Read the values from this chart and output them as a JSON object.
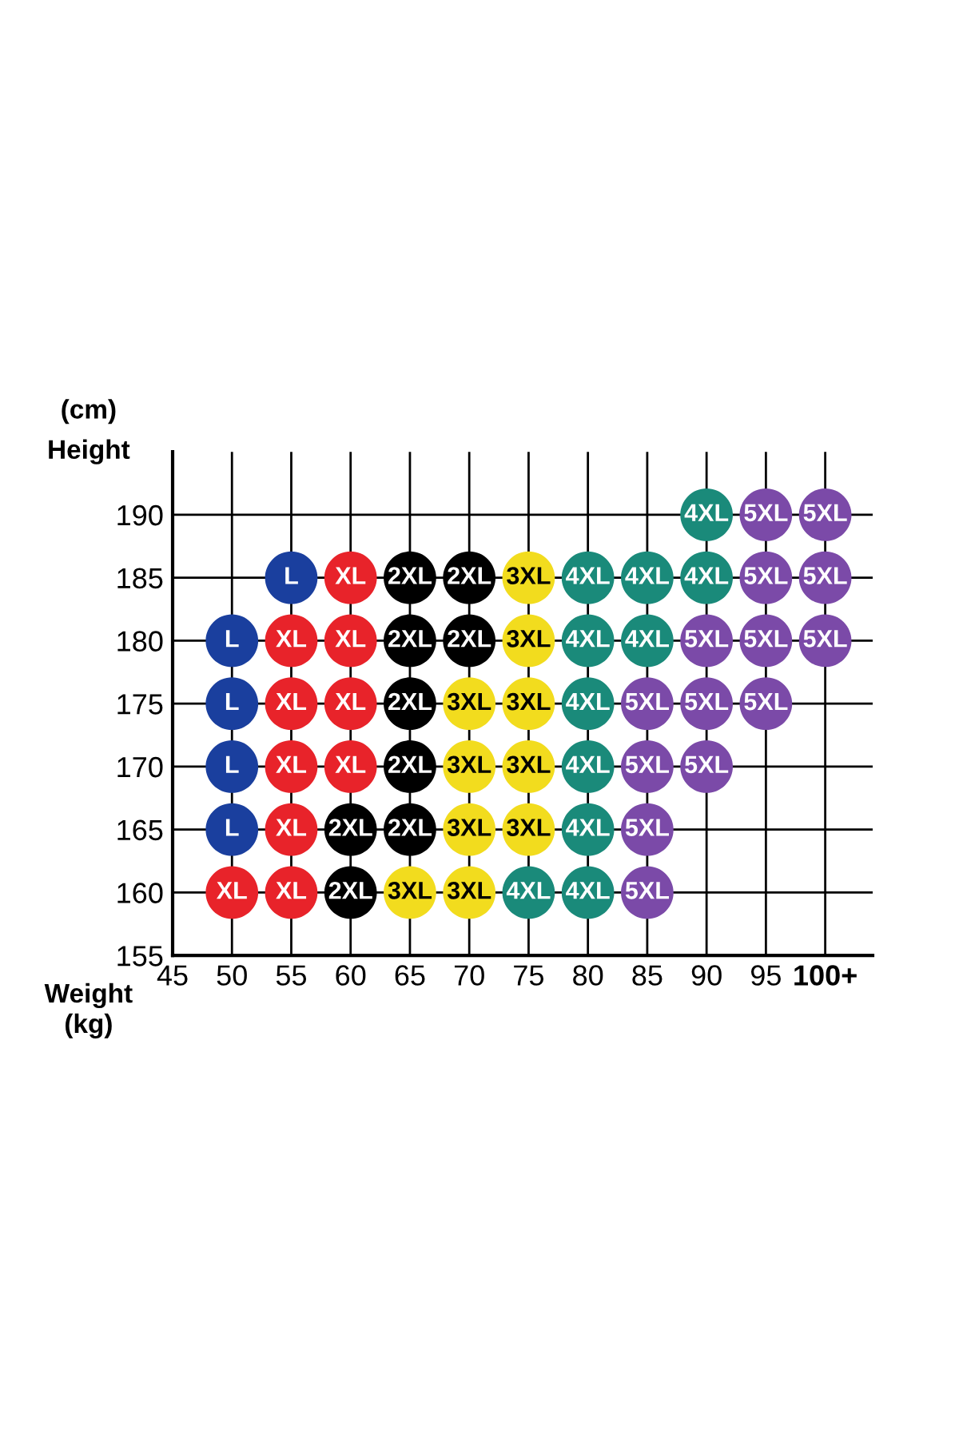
{
  "chart_data": {
    "type": "scatter",
    "xlabel": "Weight",
    "ylabel": "Height",
    "annotations": [
      "(cm)",
      "(kg)"
    ],
    "xlim": [
      45,
      104
    ],
    "ylim": [
      155,
      195
    ],
    "xticks": [
      45,
      50,
      55,
      60,
      65,
      70,
      75,
      80,
      85,
      90,
      95,
      {
        "value": 100,
        "label": "100+"
      }
    ],
    "yticks": [
      155,
      160,
      165,
      170,
      175,
      180,
      185,
      190
    ],
    "grid": true,
    "legend": false,
    "marker": "circle",
    "series": [
      {
        "name": "L",
        "color": "#1a3f9e",
        "x": [
          50,
          50,
          50,
          50,
          55
        ],
        "values": [
          180,
          175,
          170,
          165,
          185
        ]
      },
      {
        "name": "XL",
        "color": "#e8232a",
        "x": [
          50,
          55,
          55,
          55,
          55,
          55,
          60,
          60,
          60,
          60
        ],
        "values": [
          160,
          180,
          175,
          170,
          165,
          160,
          185,
          180,
          175,
          170
        ]
      },
      {
        "name": "2XL",
        "color": "#000000",
        "x": [
          60,
          60,
          65,
          65,
          65,
          65,
          65,
          70,
          70
        ],
        "values": [
          165,
          160,
          185,
          180,
          175,
          170,
          165,
          185,
          180
        ]
      },
      {
        "name": "3XL",
        "color": "#f2dc1e",
        "x": [
          65,
          70,
          70,
          70,
          70,
          75,
          75,
          75,
          75,
          75
        ],
        "values": [
          160,
          175,
          170,
          165,
          160,
          185,
          180,
          175,
          170,
          165
        ]
      },
      {
        "name": "4XL",
        "color": "#1a8a7a",
        "x": [
          75,
          80,
          80,
          80,
          80,
          80,
          80,
          85,
          85,
          90,
          90
        ],
        "values": [
          160,
          185,
          180,
          175,
          170,
          165,
          160,
          185,
          180,
          190,
          185
        ]
      },
      {
        "name": "5XL",
        "color": "#7b4aa8",
        "x": [
          85,
          85,
          85,
          85,
          90,
          90,
          90,
          95,
          95,
          95,
          95,
          100,
          100,
          100
        ],
        "values": [
          175,
          170,
          165,
          160,
          180,
          175,
          170,
          190,
          185,
          180,
          175,
          190,
          185,
          180
        ]
      }
    ]
  }
}
